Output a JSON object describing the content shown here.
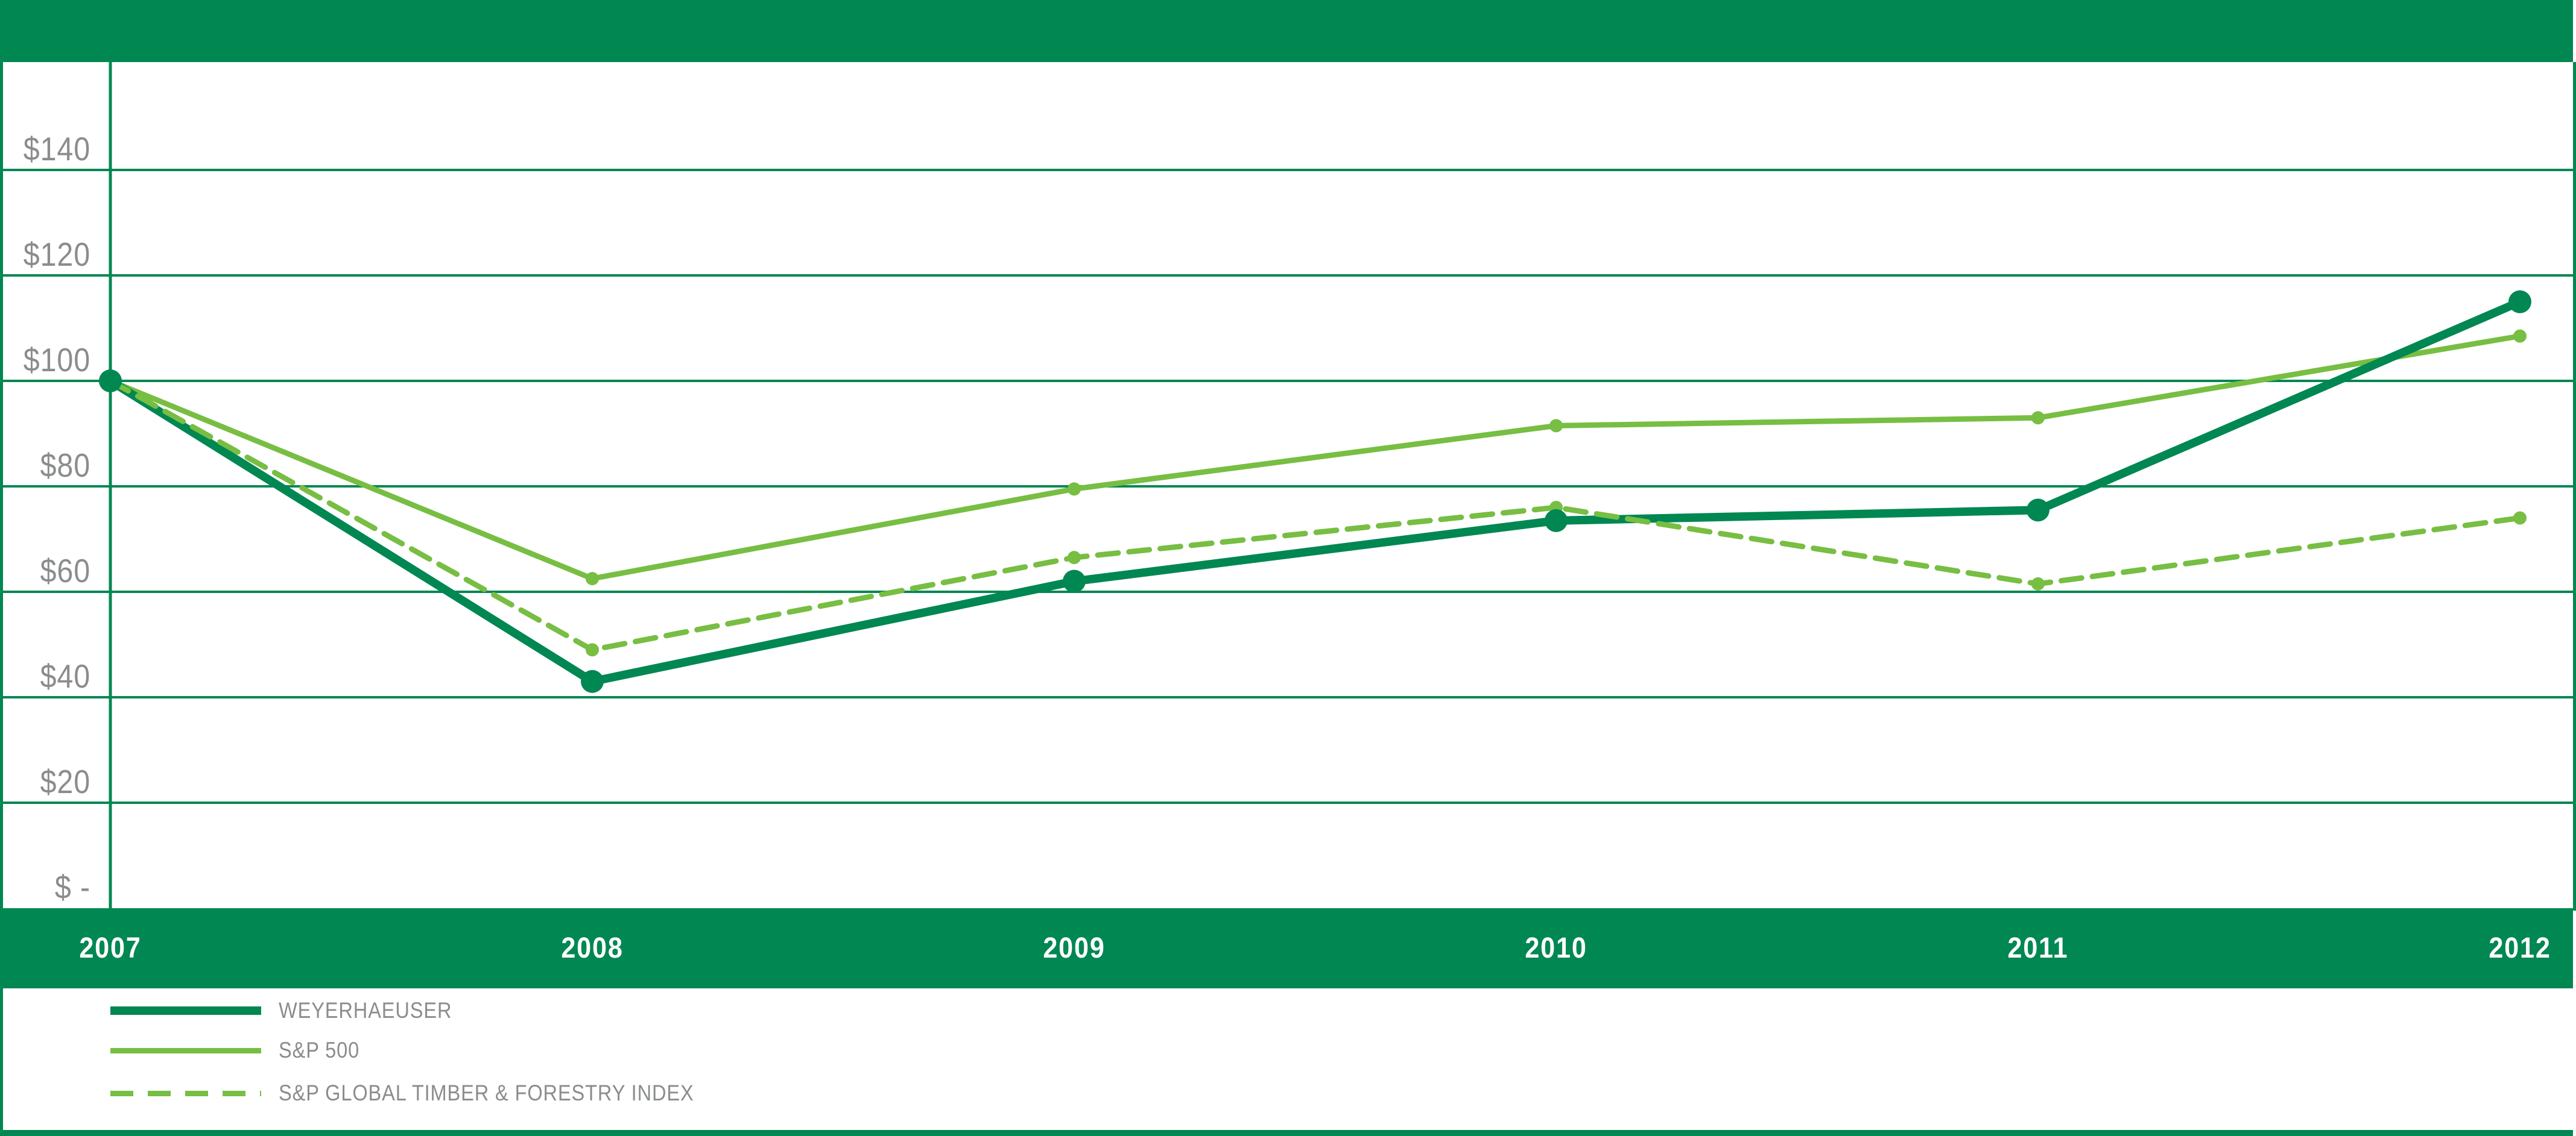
{
  "palette": {
    "dark_green": "#008752",
    "light_green": "#77be43",
    "label_gray": "#8a8c8e",
    "band_text": "#ffffff",
    "background": "#ffffff"
  },
  "chart_data": {
    "type": "line",
    "title": "",
    "xlabel": "",
    "ylabel": "",
    "unit_prefix": "$",
    "x_labels": [
      "2007",
      "2008",
      "2009",
      "2010",
      "2011",
      "2012"
    ],
    "y_ticks": [
      {
        "label": "$140",
        "value": 140
      },
      {
        "label": "$120",
        "value": 120
      },
      {
        "label": "$100",
        "value": 100
      },
      {
        "label": "$80",
        "value": 80
      },
      {
        "label": "$60",
        "value": 60
      },
      {
        "label": "$40",
        "value": 40
      },
      {
        "label": "$20",
        "value": 20
      },
      {
        "label": "$ -",
        "value": 0
      }
    ],
    "ylim": [
      0,
      160
    ],
    "grid": "horizontal-only",
    "legend_position": "bottom-left",
    "series": [
      {
        "name": "WEYERHAEUSER",
        "values": [
          100,
          43,
          62,
          73.5,
          75.5,
          115
        ],
        "color_key": "dark_green",
        "line_style": "solid",
        "line_width": 14,
        "dot_radius": 19,
        "swatch_height": 14
      },
      {
        "name": "S&P 500",
        "values": [
          100,
          62.5,
          79.5,
          91.5,
          93,
          108.5
        ],
        "color_key": "light_green",
        "line_style": "solid",
        "line_width": 9,
        "dot_radius": 11,
        "swatch_height": 9
      },
      {
        "name": "S&P GLOBAL TIMBER & FORESTRY INDEX",
        "values": [
          100,
          49,
          66.5,
          76,
          61.5,
          74
        ],
        "color_key": "light_green",
        "line_style": "dashed",
        "line_width": 9,
        "dot_radius": 11,
        "swatch_height": 9
      }
    ]
  }
}
